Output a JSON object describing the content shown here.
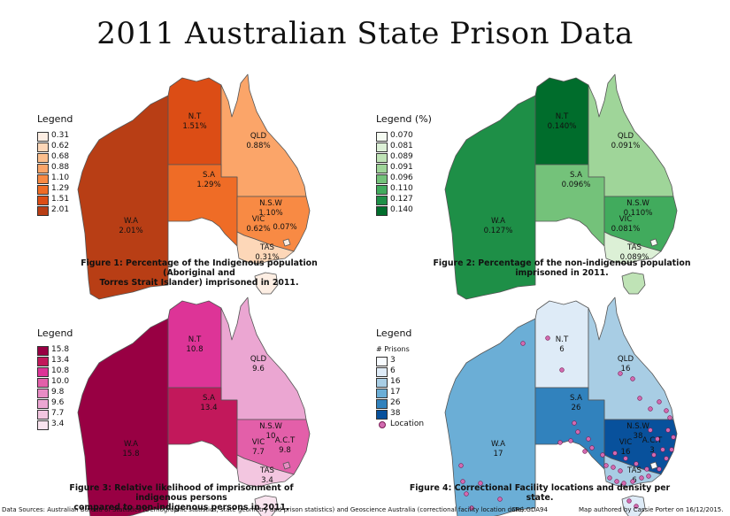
{
  "title": "2011 Australian State Prison Data",
  "maps": [
    {
      "legend_title": "Legend",
      "legend_sub": "",
      "legend": [
        {
          "label": "0.31",
          "color": "#fdeee3"
        },
        {
          "label": "0.62",
          "color": "#fdd7b8"
        },
        {
          "label": "0.68",
          "color": "#fcbf8d"
        },
        {
          "label": "0.88",
          "color": "#fba569"
        },
        {
          "label": "1.10",
          "color": "#f88a44"
        },
        {
          "label": "1.29",
          "color": "#ef6c26"
        },
        {
          "label": "1.51",
          "color": "#dc4d15"
        },
        {
          "label": "2.01",
          "color": "#b83e15"
        }
      ],
      "states": {
        "WA": {
          "name": "W.A",
          "value": "2.01%",
          "color": "#b83e15"
        },
        "NT": {
          "name": "N.T",
          "value": "1.51%",
          "color": "#dc4d15"
        },
        "QLD": {
          "name": "QLD",
          "value": "0.88%",
          "color": "#fba569"
        },
        "SA": {
          "name": "S.A",
          "value": "1.29%",
          "color": "#ef6c26"
        },
        "NSW": {
          "name": "N.S.W",
          "value": "1.10%",
          "color": "#f88a44"
        },
        "VIC": {
          "name": "VIC",
          "value": "0.62%",
          "color": "#fdd7b8"
        },
        "ACT": {
          "name": "",
          "value": "0.07%",
          "color": "#fdeee3"
        },
        "TAS": {
          "name": "TAS",
          "value": "0.31%",
          "color": "#fdeee3"
        }
      },
      "caption": [
        "Figure 1: Percentage of the Indigenous population (Aboriginal and",
        "Torres Strait Islander) imprisoned in 2011."
      ]
    },
    {
      "legend_title": "Legend (%)",
      "legend_sub": "",
      "legend": [
        {
          "label": "0.070",
          "color": "#f5fbf2"
        },
        {
          "label": "0.081",
          "color": "#dcf0d6"
        },
        {
          "label": "0.089",
          "color": "#bfe3b6"
        },
        {
          "label": "0.091",
          "color": "#9fd599"
        },
        {
          "label": "0.096",
          "color": "#74c27a"
        },
        {
          "label": "0.110",
          "color": "#41ab5d"
        },
        {
          "label": "0.127",
          "color": "#1e8f47"
        },
        {
          "label": "0.140",
          "color": "#006d2c"
        }
      ],
      "states": {
        "WA": {
          "name": "W.A",
          "value": "0.127%",
          "color": "#1e8f47"
        },
        "NT": {
          "name": "N.T",
          "value": "0.140%",
          "color": "#006d2c"
        },
        "QLD": {
          "name": "QLD",
          "value": "0.091%",
          "color": "#9fd599"
        },
        "SA": {
          "name": "S.A",
          "value": "0.096%",
          "color": "#74c27a"
        },
        "NSW": {
          "name": "N.S.W",
          "value": "0.110%",
          "color": "#41ab5d"
        },
        "VIC": {
          "name": "VIC",
          "value": "0.081%",
          "color": "#dcf0d6"
        },
        "ACT": {
          "name": "",
          "value": "",
          "color": "#f5fbf2"
        },
        "TAS": {
          "name": "TAS",
          "value": "0.089%",
          "color": "#bfe3b6"
        }
      },
      "caption": [
        "Figure 2: Percentage of the non-indigenous population",
        "imprisoned in 2011."
      ]
    },
    {
      "legend_title": "Legend",
      "legend_sub": "",
      "legend": [
        {
          "label": "15.8",
          "color": "#980043"
        },
        {
          "label": "13.4",
          "color": "#c2185b"
        },
        {
          "label": "10.8",
          "color": "#dd3497"
        },
        {
          "label": "10.0",
          "color": "#e35fa9"
        },
        {
          "label": "9.8",
          "color": "#e88cc4"
        },
        {
          "label": "9.6",
          "color": "#eba6d2"
        },
        {
          "label": "7.7",
          "color": "#f3c6e0"
        },
        {
          "label": "3.4",
          "color": "#f9e4ef"
        }
      ],
      "states": {
        "WA": {
          "name": "W.A",
          "value": "15.8",
          "color": "#980043"
        },
        "NT": {
          "name": "N.T",
          "value": "10.8",
          "color": "#dd3497"
        },
        "QLD": {
          "name": "QLD",
          "value": "9.6",
          "color": "#eba6d2"
        },
        "SA": {
          "name": "S.A",
          "value": "13.4",
          "color": "#c2185b"
        },
        "NSW": {
          "name": "N.S.W",
          "value": "10",
          "color": "#e35fa9"
        },
        "VIC": {
          "name": "VIC",
          "value": "7.7",
          "color": "#f3c6e0"
        },
        "ACT": {
          "name": "A.C.T",
          "value": "9.8",
          "color": "#e88cc4"
        },
        "TAS": {
          "name": "TAS",
          "value": "3.4",
          "color": "#f9e4ef"
        }
      },
      "caption": [
        "Figure 3: Relative likelihood of imprisonment of indigenous persons",
        "compared to non-indigenous persons in 2011."
      ]
    },
    {
      "legend_title": "Legend",
      "legend_sub": "# Prisons",
      "legend": [
        {
          "label": "3",
          "color": "#f7fbff"
        },
        {
          "label": "6",
          "color": "#deebf7"
        },
        {
          "label": "16",
          "color": "#a8cde4"
        },
        {
          "label": "17",
          "color": "#6baed6"
        },
        {
          "label": "26",
          "color": "#3182bd"
        },
        {
          "label": "38",
          "color": "#08519c"
        }
      ],
      "location_label": "Location",
      "states": {
        "WA": {
          "name": "W.A",
          "value": "17",
          "color": "#6baed6"
        },
        "NT": {
          "name": "N.T",
          "value": "6",
          "color": "#deebf7"
        },
        "QLD": {
          "name": "QLD",
          "value": "16",
          "color": "#a8cde4"
        },
        "SA": {
          "name": "S.A",
          "value": "26",
          "color": "#3182bd"
        },
        "NSW": {
          "name": "N.S.W",
          "value": "38",
          "color": "#08519c"
        },
        "VIC": {
          "name": "VIC",
          "value": "16",
          "color": "#a8cde4"
        },
        "ACT": {
          "name": "A.C.T",
          "value": "3",
          "color": "#f7fbff"
        },
        "TAS": {
          "name": "TAS",
          "value": "6",
          "color": "#deebf7"
        }
      },
      "caption": [
        "Figure 4: Correctional Facility locations and density per state."
      ]
    }
  ],
  "footer": {
    "sources": "Data Sources: Australian Bureau of Statistics (Demographic statistics, state geometry and prison statistics) and Geoscience Australia (correctional facility location data).",
    "crs": "CRS:GDA94",
    "author": "Map authored by Cassie Porter on 16/12/2015."
  },
  "chart_data": [
    {
      "type": "choropleth-map",
      "title": "Figure 1: Percentage of the Indigenous population (Aboriginal and Torres Strait Islander) imprisoned in 2011.",
      "categories": [
        "W.A",
        "N.T",
        "QLD",
        "S.A",
        "N.S.W",
        "VIC",
        "A.C.T",
        "TAS"
      ],
      "values": [
        2.01,
        1.51,
        0.88,
        1.29,
        1.1,
        0.62,
        0.07,
        0.31
      ],
      "unit": "%"
    },
    {
      "type": "choropleth-map",
      "title": "Figure 2: Percentage of the non-indigenous population imprisoned in 2011.",
      "categories": [
        "W.A",
        "N.T",
        "QLD",
        "S.A",
        "N.S.W",
        "VIC",
        "TAS"
      ],
      "values": [
        0.127,
        0.14,
        0.091,
        0.096,
        0.11,
        0.081,
        0.089
      ],
      "unit": "%"
    },
    {
      "type": "choropleth-map",
      "title": "Figure 3: Relative likelihood of imprisonment of indigenous persons compared to non-indigenous persons in 2011.",
      "categories": [
        "W.A",
        "N.T",
        "QLD",
        "S.A",
        "N.S.W",
        "VIC",
        "A.C.T",
        "TAS"
      ],
      "values": [
        15.8,
        10.8,
        9.6,
        13.4,
        10,
        7.7,
        9.8,
        3.4
      ]
    },
    {
      "type": "choropleth-map",
      "title": "Figure 4: Correctional Facility locations and density per state.",
      "categories": [
        "W.A",
        "N.T",
        "QLD",
        "S.A",
        "N.S.W",
        "VIC",
        "A.C.T",
        "TAS"
      ],
      "values": [
        17,
        6,
        16,
        26,
        38,
        16,
        3,
        6
      ],
      "unit": "# Prisons"
    }
  ]
}
